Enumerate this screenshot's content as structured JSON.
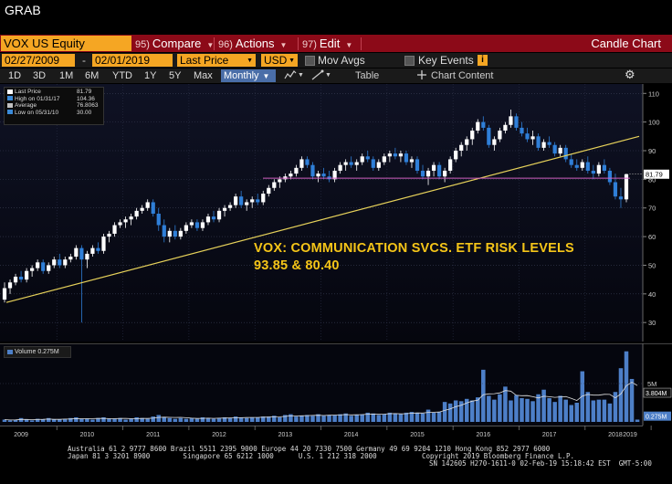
{
  "window_title": "GRAB",
  "command_bar": {
    "ticker": "VOX US Equity",
    "compare": {
      "num": "95)",
      "label": "Compare"
    },
    "actions": {
      "num": "96)",
      "label": "Actions"
    },
    "edit": {
      "num": "97)",
      "label": "Edit"
    },
    "chart_type": "Candle Chart"
  },
  "settings_bar": {
    "start_date": "02/27/2009",
    "end_date": "02/01/2019",
    "price_field": "Last Price",
    "currency": "USD",
    "mov_avgs": "Mov Avgs",
    "key_events": "Key Events"
  },
  "range_bar": {
    "ranges": [
      "1D",
      "3D",
      "1M",
      "6M",
      "YTD",
      "1Y",
      "5Y",
      "Max"
    ],
    "frequency": "Monthly",
    "table": "Table",
    "chart_content": "Chart Content"
  },
  "legend": {
    "rows": [
      {
        "label": "Last Price",
        "value": "81.79",
        "color": "#ffffff"
      },
      {
        "label": "High on 01/31/17",
        "value": "104.36",
        "color": "#3a8ad8"
      },
      {
        "label": "Average",
        "value": "76.8063",
        "color": "#c0c0c0"
      },
      {
        "label": "Low on 05/31/10",
        "value": "30.00",
        "color": "#3a8ad8"
      }
    ]
  },
  "annotation": {
    "line1": "VOX: COMMUNICATION SVCS. ETF RISK LEVELS",
    "line2": "93.85 & 80.40"
  },
  "price_tag": "81.79",
  "volume": {
    "legend_label": "Volume",
    "legend_value": "0.275M",
    "ma_tag": "3.804M",
    "last_tag": "0.275M",
    "tick_5m": "5M"
  },
  "chart_data": {
    "type": "candlestick",
    "frequency": "monthly",
    "x_axis_years": [
      "2009",
      "2010",
      "2011",
      "2012",
      "2013",
      "2014",
      "2015",
      "2016",
      "2017",
      "2018",
      "2019"
    ],
    "y_ticks": [
      30,
      40,
      50,
      60,
      70,
      80,
      90,
      100,
      110
    ],
    "ylim": [
      24,
      112
    ],
    "colors": {
      "up": "#ffffff",
      "down": "#2f7fd8",
      "trend": "#e6d15a",
      "level": "#d060c0",
      "volume": "#4d7fc8"
    },
    "trendline": {
      "from": {
        "date": "2009-03",
        "price": 37
      },
      "to": {
        "date": "2019-02",
        "price": 95
      }
    },
    "horizontal_level": 80.4,
    "last_price": 81.79,
    "candles": [
      {
        "o": 38,
        "h": 44,
        "l": 37,
        "c": 42
      },
      {
        "o": 42,
        "h": 45,
        "l": 40,
        "c": 44
      },
      {
        "o": 44,
        "h": 47,
        "l": 43,
        "c": 46
      },
      {
        "o": 46,
        "h": 48,
        "l": 44,
        "c": 45
      },
      {
        "o": 45,
        "h": 49,
        "l": 44,
        "c": 48
      },
      {
        "o": 48,
        "h": 50,
        "l": 46,
        "c": 49
      },
      {
        "o": 49,
        "h": 52,
        "l": 48,
        "c": 51
      },
      {
        "o": 51,
        "h": 52,
        "l": 47,
        "c": 48
      },
      {
        "o": 48,
        "h": 51,
        "l": 47,
        "c": 50
      },
      {
        "o": 50,
        "h": 53,
        "l": 49,
        "c": 52
      },
      {
        "o": 52,
        "h": 54,
        "l": 49,
        "c": 50
      },
      {
        "o": 50,
        "h": 53,
        "l": 49,
        "c": 52
      },
      {
        "o": 52,
        "h": 54,
        "l": 51,
        "c": 53
      },
      {
        "o": 53,
        "h": 57,
        "l": 52,
        "c": 56
      },
      {
        "o": 56,
        "h": 57,
        "l": 30,
        "c": 52
      },
      {
        "o": 52,
        "h": 55,
        "l": 49,
        "c": 54
      },
      {
        "o": 54,
        "h": 57,
        "l": 53,
        "c": 56
      },
      {
        "o": 56,
        "h": 58,
        "l": 54,
        "c": 55
      },
      {
        "o": 55,
        "h": 61,
        "l": 54,
        "c": 60
      },
      {
        "o": 60,
        "h": 62,
        "l": 58,
        "c": 61
      },
      {
        "o": 61,
        "h": 65,
        "l": 60,
        "c": 64
      },
      {
        "o": 64,
        "h": 66,
        "l": 63,
        "c": 65
      },
      {
        "o": 65,
        "h": 67,
        "l": 63,
        "c": 66
      },
      {
        "o": 66,
        "h": 68,
        "l": 64,
        "c": 67
      },
      {
        "o": 67,
        "h": 70,
        "l": 66,
        "c": 69
      },
      {
        "o": 69,
        "h": 71,
        "l": 68,
        "c": 70
      },
      {
        "o": 70,
        "h": 73,
        "l": 69,
        "c": 72
      },
      {
        "o": 72,
        "h": 73,
        "l": 67,
        "c": 68
      },
      {
        "o": 68,
        "h": 70,
        "l": 62,
        "c": 64
      },
      {
        "o": 64,
        "h": 66,
        "l": 58,
        "c": 60
      },
      {
        "o": 60,
        "h": 63,
        "l": 58,
        "c": 62
      },
      {
        "o": 62,
        "h": 64,
        "l": 59,
        "c": 60
      },
      {
        "o": 60,
        "h": 63,
        "l": 59,
        "c": 62
      },
      {
        "o": 62,
        "h": 65,
        "l": 61,
        "c": 64
      },
      {
        "o": 64,
        "h": 66,
        "l": 63,
        "c": 65
      },
      {
        "o": 65,
        "h": 66,
        "l": 62,
        "c": 63
      },
      {
        "o": 63,
        "h": 66,
        "l": 62,
        "c": 65
      },
      {
        "o": 65,
        "h": 68,
        "l": 64,
        "c": 67
      },
      {
        "o": 67,
        "h": 69,
        "l": 65,
        "c": 66
      },
      {
        "o": 66,
        "h": 70,
        "l": 65,
        "c": 69
      },
      {
        "o": 69,
        "h": 71,
        "l": 67,
        "c": 70
      },
      {
        "o": 70,
        "h": 72,
        "l": 69,
        "c": 71
      },
      {
        "o": 71,
        "h": 75,
        "l": 70,
        "c": 74
      },
      {
        "o": 74,
        "h": 76,
        "l": 70,
        "c": 71
      },
      {
        "o": 71,
        "h": 73,
        "l": 69,
        "c": 72
      },
      {
        "o": 72,
        "h": 74,
        "l": 70,
        "c": 73
      },
      {
        "o": 73,
        "h": 75,
        "l": 71,
        "c": 72
      },
      {
        "o": 72,
        "h": 76,
        "l": 71,
        "c": 75
      },
      {
        "o": 75,
        "h": 78,
        "l": 74,
        "c": 77
      },
      {
        "o": 77,
        "h": 80,
        "l": 76,
        "c": 79
      },
      {
        "o": 79,
        "h": 81,
        "l": 77,
        "c": 80
      },
      {
        "o": 80,
        "h": 82,
        "l": 79,
        "c": 81
      },
      {
        "o": 81,
        "h": 83,
        "l": 80,
        "c": 82
      },
      {
        "o": 82,
        "h": 85,
        "l": 81,
        "c": 84
      },
      {
        "o": 84,
        "h": 88,
        "l": 83,
        "c": 87
      },
      {
        "o": 87,
        "h": 88,
        "l": 84,
        "c": 85
      },
      {
        "o": 85,
        "h": 86,
        "l": 80,
        "c": 81
      },
      {
        "o": 81,
        "h": 83,
        "l": 79,
        "c": 82
      },
      {
        "o": 82,
        "h": 84,
        "l": 80,
        "c": 81
      },
      {
        "o": 81,
        "h": 83,
        "l": 79,
        "c": 80
      },
      {
        "o": 80,
        "h": 84,
        "l": 79,
        "c": 83
      },
      {
        "o": 83,
        "h": 86,
        "l": 82,
        "c": 85
      },
      {
        "o": 85,
        "h": 87,
        "l": 83,
        "c": 86
      },
      {
        "o": 86,
        "h": 88,
        "l": 84,
        "c": 85
      },
      {
        "o": 85,
        "h": 87,
        "l": 83,
        "c": 86
      },
      {
        "o": 86,
        "h": 89,
        "l": 85,
        "c": 88
      },
      {
        "o": 88,
        "h": 90,
        "l": 86,
        "c": 87
      },
      {
        "o": 87,
        "h": 88,
        "l": 83,
        "c": 84
      },
      {
        "o": 84,
        "h": 87,
        "l": 83,
        "c": 86
      },
      {
        "o": 86,
        "h": 89,
        "l": 85,
        "c": 88
      },
      {
        "o": 88,
        "h": 90,
        "l": 86,
        "c": 89
      },
      {
        "o": 89,
        "h": 91,
        "l": 87,
        "c": 88
      },
      {
        "o": 88,
        "h": 90,
        "l": 86,
        "c": 89
      },
      {
        "o": 89,
        "h": 90,
        "l": 85,
        "c": 86
      },
      {
        "o": 86,
        "h": 88,
        "l": 84,
        "c": 87
      },
      {
        "o": 87,
        "h": 88,
        "l": 82,
        "c": 83
      },
      {
        "o": 83,
        "h": 85,
        "l": 80,
        "c": 81
      },
      {
        "o": 81,
        "h": 84,
        "l": 78,
        "c": 83
      },
      {
        "o": 83,
        "h": 86,
        "l": 81,
        "c": 85
      },
      {
        "o": 85,
        "h": 86,
        "l": 80,
        "c": 81
      },
      {
        "o": 81,
        "h": 84,
        "l": 79,
        "c": 83
      },
      {
        "o": 83,
        "h": 88,
        "l": 82,
        "c": 87
      },
      {
        "o": 87,
        "h": 91,
        "l": 86,
        "c": 90
      },
      {
        "o": 90,
        "h": 93,
        "l": 88,
        "c": 92
      },
      {
        "o": 92,
        "h": 95,
        "l": 90,
        "c": 94
      },
      {
        "o": 94,
        "h": 98,
        "l": 92,
        "c": 97
      },
      {
        "o": 97,
        "h": 101,
        "l": 96,
        "c": 100
      },
      {
        "o": 100,
        "h": 102,
        "l": 97,
        "c": 98
      },
      {
        "o": 98,
        "h": 99,
        "l": 91,
        "c": 92
      },
      {
        "o": 92,
        "h": 95,
        "l": 90,
        "c": 94
      },
      {
        "o": 94,
        "h": 98,
        "l": 93,
        "c": 97
      },
      {
        "o": 97,
        "h": 100,
        "l": 96,
        "c": 99
      },
      {
        "o": 99,
        "h": 104.36,
        "l": 98,
        "c": 102
      },
      {
        "o": 102,
        "h": 103,
        "l": 97,
        "c": 98
      },
      {
        "o": 98,
        "h": 100,
        "l": 95,
        "c": 96
      },
      {
        "o": 96,
        "h": 98,
        "l": 93,
        "c": 94
      },
      {
        "o": 94,
        "h": 97,
        "l": 92,
        "c": 95
      },
      {
        "o": 95,
        "h": 96,
        "l": 90,
        "c": 91
      },
      {
        "o": 91,
        "h": 94,
        "l": 90,
        "c": 93
      },
      {
        "o": 93,
        "h": 95,
        "l": 91,
        "c": 92
      },
      {
        "o": 92,
        "h": 93,
        "l": 88,
        "c": 89
      },
      {
        "o": 89,
        "h": 92,
        "l": 88,
        "c": 91
      },
      {
        "o": 91,
        "h": 92,
        "l": 86,
        "c": 87
      },
      {
        "o": 87,
        "h": 89,
        "l": 84,
        "c": 85
      },
      {
        "o": 85,
        "h": 87,
        "l": 83,
        "c": 84
      },
      {
        "o": 84,
        "h": 87,
        "l": 83,
        "c": 86
      },
      {
        "o": 86,
        "h": 88,
        "l": 82,
        "c": 83
      },
      {
        "o": 83,
        "h": 85,
        "l": 80,
        "c": 82
      },
      {
        "o": 82,
        "h": 86,
        "l": 81,
        "c": 85
      },
      {
        "o": 85,
        "h": 87,
        "l": 82,
        "c": 83
      },
      {
        "o": 83,
        "h": 84,
        "l": 78,
        "c": 79
      },
      {
        "o": 79,
        "h": 82,
        "l": 73,
        "c": 74
      },
      {
        "o": 74,
        "h": 77,
        "l": 70,
        "c": 73
      },
      {
        "o": 73,
        "h": 82,
        "l": 72,
        "c": 81.79
      }
    ],
    "volumes_m": [
      0.3,
      0.2,
      0.3,
      0.5,
      0.3,
      0.2,
      0.4,
      0.3,
      0.5,
      0.3,
      0.3,
      0.4,
      0.5,
      0.6,
      0.4,
      0.4,
      0.3,
      0.5,
      0.6,
      0.4,
      0.4,
      0.5,
      0.3,
      0.4,
      0.6,
      0.5,
      0.4,
      0.7,
      0.9,
      0.6,
      0.5,
      0.4,
      0.5,
      0.4,
      0.5,
      0.4,
      0.6,
      0.5,
      0.4,
      0.5,
      0.6,
      0.5,
      0.7,
      0.6,
      0.5,
      0.6,
      0.6,
      0.7,
      0.7,
      0.8,
      0.6,
      0.9,
      1.0,
      0.7,
      0.8,
      0.9,
      0.8,
      1.0,
      0.8,
      0.9,
      0.9,
      1.0,
      1.1,
      0.8,
      0.9,
      1.0,
      1.2,
      1.1,
      0.9,
      1.0,
      1.2,
      1.1,
      1.0,
      1.2,
      1.3,
      1.2,
      1.1,
      1.6,
      1.2,
      1.3,
      2.6,
      2.4,
      2.8,
      2.7,
      3.0,
      2.8,
      3.2,
      6.8,
      3.4,
      2.9,
      3.6,
      4.6,
      2.8,
      3.5,
      3.1,
      3.0,
      2.7,
      3.6,
      4.2,
      3.1,
      2.6,
      3.4,
      2.9,
      2.2,
      2.5,
      6.6,
      3.9,
      2.8,
      2.9,
      2.9,
      2.4,
      3.9,
      7.0,
      9.2,
      5.6,
      0.3
    ]
  },
  "footer": {
    "line1": "Australia 61 2 9777 8600 Brazil 5511 2395 9000 Europe 44 20 7330 7500 Germany 49 69 9204 1210 Hong Kong 852 2977 6000",
    "line2a": "Japan 81 3 3201 8900        Singapore 65 6212 1000      U.S. 1 212 318 2000",
    "line2b": "Copyright 2019 Bloomberg Finance L.P.",
    "line3": "SN 142605 H270-1611-0 02-Feb-19 15:18:42 EST  GMT-5:00"
  }
}
